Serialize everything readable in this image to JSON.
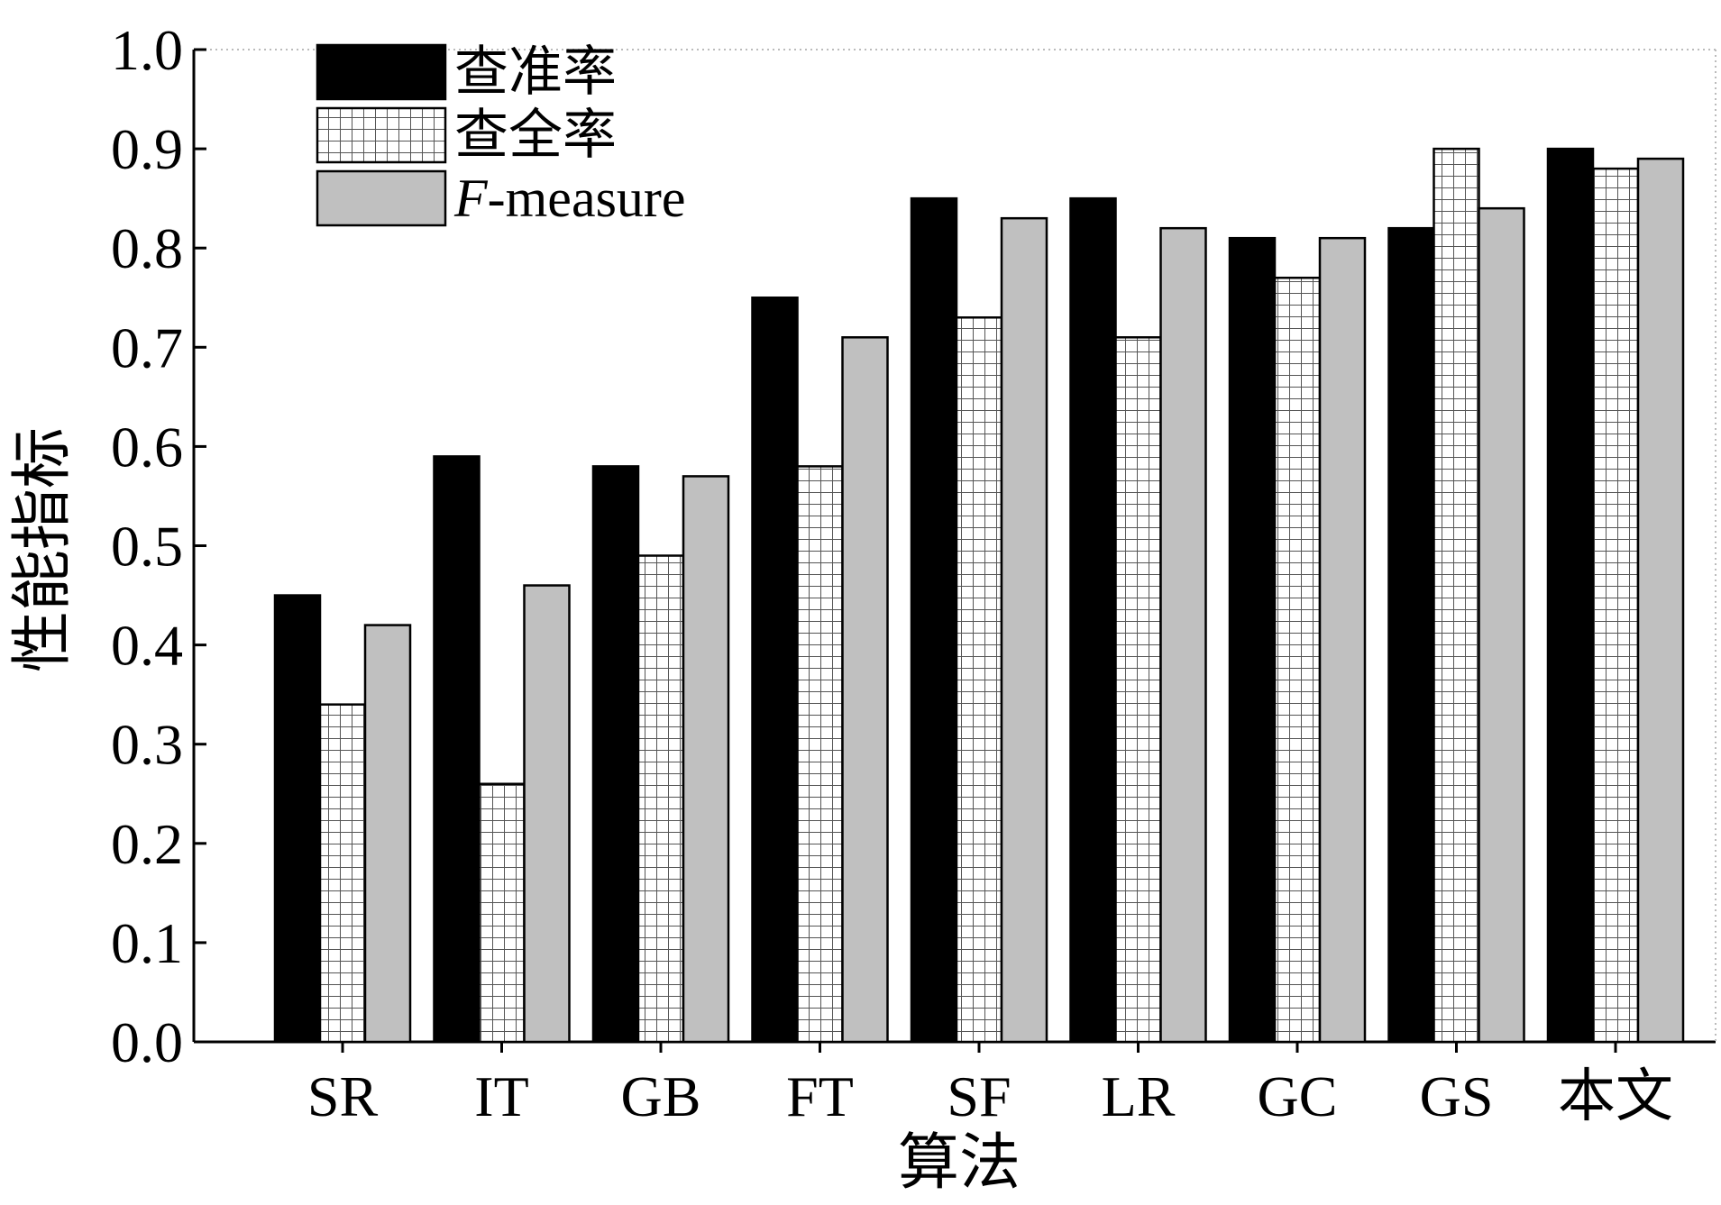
{
  "chart_data": {
    "type": "bar",
    "xlabel": "算法",
    "ylabel": "性能指标",
    "ylim": [
      0,
      1.0
    ],
    "yticks": [
      "0.0",
      "0.1",
      "0.2",
      "0.3",
      "0.4",
      "0.5",
      "0.6",
      "0.7",
      "0.8",
      "0.9",
      "1.0"
    ],
    "categories": [
      "SR",
      "IT",
      "GB",
      "FT",
      "SF",
      "LR",
      "GC",
      "GS",
      "本文"
    ],
    "series": [
      {
        "name": "查准率",
        "fill": "#000000",
        "pattern": "solid",
        "values": [
          0.45,
          0.59,
          0.58,
          0.75,
          0.85,
          0.85,
          0.81,
          0.82,
          0.9
        ]
      },
      {
        "name": "查全率",
        "fill": "#ffffff",
        "pattern": "grid",
        "values": [
          0.34,
          0.26,
          0.49,
          0.58,
          0.73,
          0.71,
          0.77,
          0.9,
          0.88
        ]
      },
      {
        "name": "F-measure",
        "name_italic_part": "F",
        "name_rest": "-measure",
        "fill": "#c0c0c0",
        "pattern": "solid",
        "values": [
          0.42,
          0.46,
          0.57,
          0.71,
          0.83,
          0.82,
          0.81,
          0.84,
          0.89
        ]
      }
    ],
    "grid": false,
    "legend": "top-left"
  }
}
